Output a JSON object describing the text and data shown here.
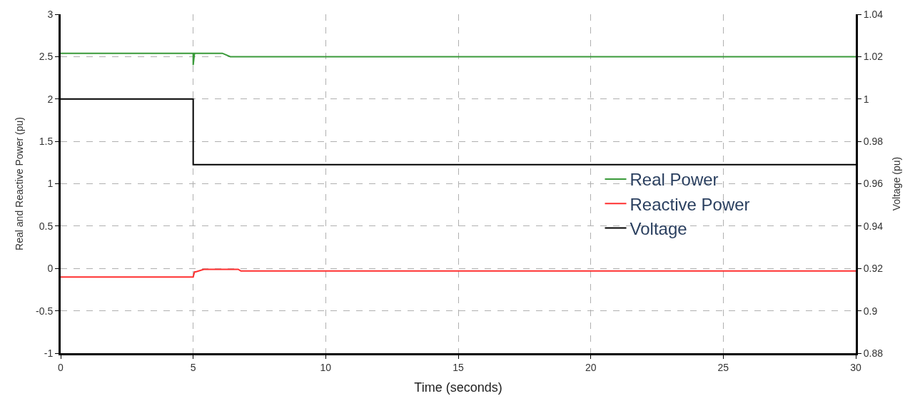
{
  "chart_data": {
    "type": "line",
    "xlabel": "Time (seconds)",
    "ylabel": "Real and Reactive Power (pu)",
    "y2label": "Voltage (pu)",
    "series": [
      {
        "name": "Real Power",
        "color": "#3a9a3a",
        "x": [
          0,
          5,
          5,
          5.05,
          6.1,
          6.4,
          30
        ],
        "values": [
          2.54,
          2.54,
          2.4,
          2.54,
          2.54,
          2.5,
          2.5
        ]
      },
      {
        "name": "Reactive Power",
        "color": "#ff3030",
        "x": [
          0,
          5,
          5.05,
          5.1,
          5.4,
          6.7,
          6.8,
          30
        ],
        "values": [
          -0.1,
          -0.1,
          -0.04,
          -0.04,
          -0.01,
          -0.01,
          -0.03,
          -0.03
        ]
      },
      {
        "name": "Voltage",
        "color": "#000000",
        "axis": "y2",
        "x": [
          0,
          5,
          5,
          30
        ],
        "values": [
          1.0,
          1.0,
          0.969,
          0.969
        ]
      }
    ],
    "xlim": [
      0,
      30
    ],
    "xticks": [
      0,
      5,
      10,
      15,
      20,
      25,
      30
    ],
    "ylim": [
      -1,
      3
    ],
    "yticks": [
      -1,
      -0.5,
      0,
      0.5,
      1,
      1.5,
      2,
      2.5,
      3
    ],
    "y2lim": [
      0.88,
      1.04
    ],
    "y2ticks": [
      0.88,
      0.9,
      0.92,
      0.94,
      0.96,
      0.98,
      1,
      1.02,
      1.04
    ],
    "grid": true,
    "legend": "right",
    "marker": "none",
    "line_style": "solid"
  }
}
